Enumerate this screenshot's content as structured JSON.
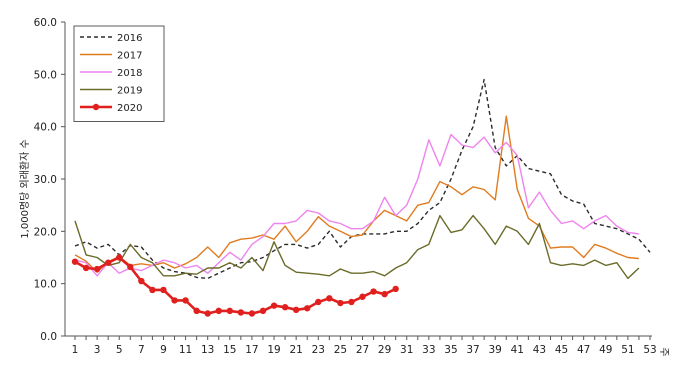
{
  "chart_data": {
    "type": "line",
    "ylabel": "1,000명당 외래환자 수",
    "xlabel": "주",
    "ylim": [
      0,
      60
    ],
    "yticks": [
      0.0,
      10.0,
      20.0,
      30.0,
      40.0,
      50.0,
      60.0
    ],
    "ytick_labels": [
      "0.0",
      "10.0",
      "20.0",
      "30.0",
      "40.0",
      "50.0",
      "60.0"
    ],
    "xlim": [
      1,
      53
    ],
    "xticks": [
      1,
      3,
      5,
      7,
      9,
      11,
      13,
      15,
      17,
      19,
      21,
      23,
      25,
      27,
      29,
      31,
      33,
      35,
      37,
      39,
      41,
      43,
      45,
      47,
      49,
      51,
      53
    ],
    "xtick_labels": [
      "1",
      "3",
      "5",
      "7",
      "9",
      "11",
      "13",
      "15",
      "17",
      "19",
      "21",
      "23",
      "25",
      "27",
      "29",
      "31",
      "33",
      "35",
      "37",
      "39",
      "41",
      "43",
      "45",
      "47",
      "49",
      "51",
      "53"
    ],
    "grid": false,
    "legend_position": "top-left",
    "series": [
      {
        "name": "2016",
        "color": "#2b2b2b",
        "dash": "dashed",
        "x": [
          1,
          2,
          3,
          4,
          5,
          6,
          7,
          8,
          9,
          10,
          11,
          12,
          13,
          14,
          15,
          16,
          17,
          18,
          19,
          20,
          21,
          22,
          23,
          24,
          25,
          26,
          27,
          28,
          29,
          30,
          31,
          32,
          33,
          34,
          35,
          36,
          37,
          38,
          39,
          40,
          41,
          42,
          43,
          44,
          45,
          46,
          47,
          48,
          49,
          50,
          51,
          52,
          53
        ],
        "values": [
          17.2,
          18.0,
          16.8,
          17.5,
          15.5,
          17.3,
          17.0,
          14.5,
          13.0,
          12.3,
          12.0,
          11.2,
          11.0,
          12.0,
          13.0,
          14.0,
          14.2,
          15.0,
          16.3,
          17.5,
          17.5,
          16.8,
          17.5,
          20.0,
          17.0,
          19.0,
          19.5,
          19.5,
          19.5,
          20.0,
          20.0,
          21.5,
          24.0,
          25.5,
          30.0,
          35.5,
          40.0,
          49.0,
          36.0,
          32.5,
          34.5,
          32.0,
          31.5,
          31.0,
          27.0,
          25.8,
          25.2,
          21.5,
          21.0,
          20.5,
          19.5,
          18.5,
          16.0
        ]
      },
      {
        "name": "2017",
        "color": "#e07b1f",
        "dash": "solid",
        "x": [
          1,
          2,
          3,
          4,
          5,
          6,
          7,
          8,
          9,
          10,
          11,
          12,
          13,
          14,
          15,
          16,
          17,
          18,
          19,
          20,
          21,
          22,
          23,
          24,
          25,
          26,
          27,
          28,
          29,
          30,
          31,
          32,
          33,
          34,
          35,
          36,
          37,
          38,
          39,
          40,
          41,
          42,
          43,
          44,
          45,
          46,
          47,
          48,
          49,
          50,
          51,
          52
        ],
        "values": [
          15.5,
          14.3,
          12.2,
          14.2,
          15.2,
          13.5,
          13.8,
          13.5,
          14.0,
          13.0,
          13.8,
          15.0,
          17.0,
          15.0,
          17.8,
          18.5,
          18.7,
          19.3,
          18.5,
          21.0,
          18.0,
          20.0,
          22.8,
          21.0,
          20.0,
          19.0,
          19.3,
          22.0,
          24.0,
          23.0,
          22.0,
          25.0,
          25.5,
          29.5,
          28.5,
          27.0,
          28.5,
          28.0,
          26.0,
          42.0,
          28.0,
          22.5,
          21.0,
          16.8,
          17.0,
          17.0,
          15.0,
          17.5,
          16.8,
          15.8,
          15.0,
          14.8
        ]
      },
      {
        "name": "2018",
        "color": "#ee84ee",
        "dash": "solid",
        "x": [
          1,
          2,
          3,
          4,
          5,
          6,
          7,
          8,
          9,
          10,
          11,
          12,
          13,
          14,
          15,
          16,
          17,
          18,
          19,
          20,
          21,
          22,
          23,
          24,
          25,
          26,
          27,
          28,
          29,
          30,
          31,
          32,
          33,
          34,
          35,
          36,
          37,
          38,
          39,
          40,
          41,
          42,
          43,
          44,
          45,
          46,
          47,
          48,
          49,
          50,
          51,
          52
        ],
        "values": [
          14.5,
          14.0,
          11.5,
          14.0,
          12.0,
          13.0,
          12.5,
          13.5,
          14.5,
          14.0,
          13.0,
          13.5,
          12.0,
          14.0,
          16.0,
          14.5,
          17.5,
          19.0,
          21.5,
          21.5,
          22.0,
          24.0,
          23.5,
          22.0,
          21.5,
          20.5,
          20.5,
          22.0,
          26.5,
          23.0,
          25.0,
          30.0,
          37.5,
          32.5,
          38.5,
          36.5,
          36.0,
          38.0,
          35.0,
          37.0,
          34.5,
          24.5,
          27.5,
          24.0,
          21.5,
          22.0,
          20.5,
          22.0,
          23.0,
          21.0,
          19.8,
          19.5
        ]
      },
      {
        "name": "2019",
        "color": "#6b6b2a",
        "dash": "solid",
        "x": [
          1,
          2,
          3,
          4,
          5,
          6,
          7,
          8,
          9,
          10,
          11,
          12,
          13,
          14,
          15,
          16,
          17,
          18,
          19,
          20,
          21,
          22,
          23,
          24,
          25,
          26,
          27,
          28,
          29,
          30,
          31,
          32,
          33,
          34,
          35,
          36,
          37,
          38,
          39,
          40,
          41,
          42,
          43,
          44,
          45,
          46,
          47,
          48,
          49,
          50,
          51,
          52
        ],
        "values": [
          22.0,
          15.5,
          15.0,
          13.5,
          14.0,
          17.5,
          15.0,
          14.0,
          11.5,
          11.5,
          12.0,
          11.8,
          13.0,
          13.0,
          14.0,
          13.0,
          15.0,
          12.5,
          18.0,
          13.5,
          12.2,
          12.0,
          11.8,
          11.5,
          12.8,
          12.0,
          12.0,
          12.3,
          11.5,
          13.0,
          14.0,
          16.5,
          17.5,
          23.0,
          19.8,
          20.3,
          23.0,
          20.5,
          17.5,
          21.0,
          20.0,
          17.5,
          21.5,
          14.0,
          13.5,
          13.8,
          13.5,
          14.5,
          13.5,
          14.0,
          11.0,
          13.0
        ]
      },
      {
        "name": "2020",
        "color": "#e0201e",
        "dash": "solid",
        "markers": true,
        "x": [
          1,
          2,
          3,
          4,
          5,
          6,
          7,
          8,
          9,
          10,
          11,
          12,
          13,
          14,
          15,
          16,
          17,
          18,
          19,
          20,
          21,
          22,
          23,
          24,
          25,
          26,
          27,
          28,
          29,
          30
        ],
        "values": [
          14.2,
          13.0,
          12.8,
          14.0,
          15.0,
          13.2,
          10.5,
          8.8,
          8.8,
          6.8,
          6.8,
          4.8,
          4.3,
          4.8,
          4.8,
          4.5,
          4.3,
          4.8,
          5.8,
          5.5,
          5.0,
          5.3,
          6.5,
          7.2,
          6.3,
          6.5,
          7.5,
          8.5,
          8.0,
          9.0
        ]
      }
    ]
  }
}
